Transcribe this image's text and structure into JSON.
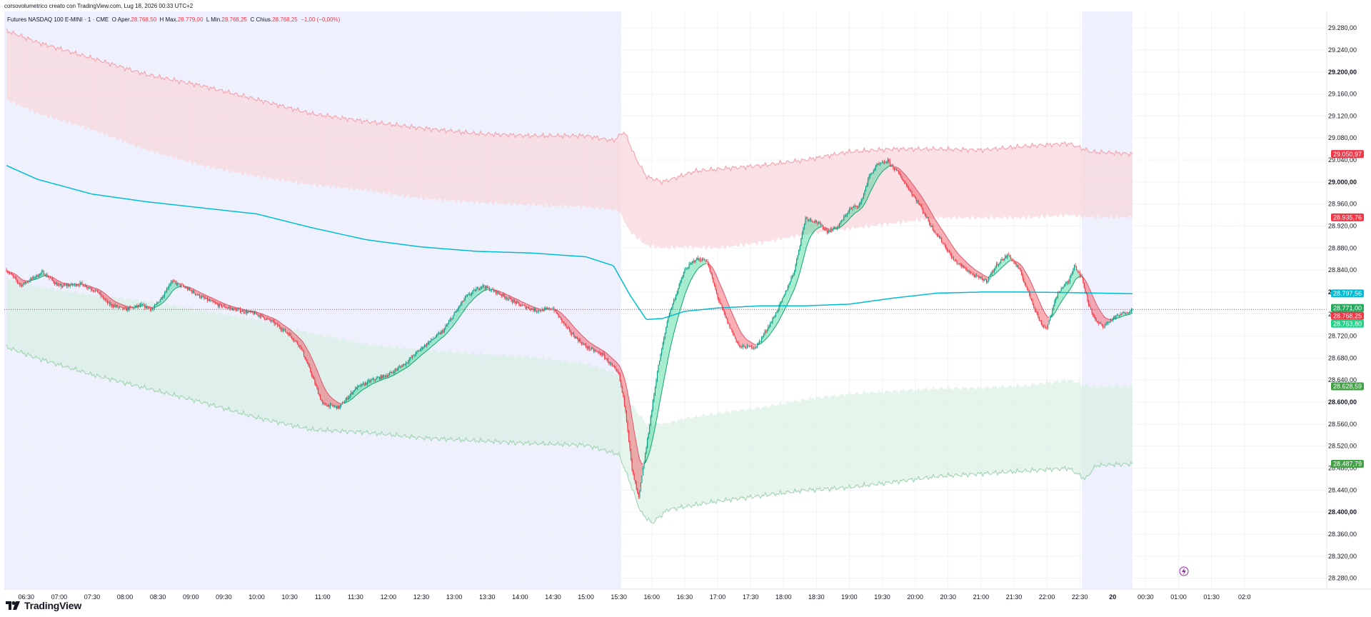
{
  "header": {
    "author_line": "corsovolumetrico creato con TradingView.com, Lug 18, 2026 00:33 UTC+2"
  },
  "legend": {
    "symbol": "Futures NASDAQ 100 E-MINI · 1 · CME",
    "open_label": "O",
    "open_prefix": "Aper.",
    "open_value": "28.768,50",
    "high_label": "H",
    "high_prefix": "Max.",
    "high_value": "28.779,00",
    "low_label": "L",
    "low_prefix": "Min.",
    "low_value": "28.768,25",
    "close_label": "C",
    "close_prefix": "Chius.",
    "close_value": "28.768,25",
    "change": "−1,00 (−0,00%)"
  },
  "footer": {
    "brand": "TradingView"
  },
  "colors": {
    "up": "#22d38a",
    "down": "#f23645",
    "vwap": "#00bcd4",
    "upper_band_fill": "#f8d7dc",
    "lower_band_fill": "#d6efe0",
    "session_shade": "#eef1fd",
    "price_line": "#f23645"
  },
  "chart_data": {
    "type": "candlestick",
    "ylim": [
      28260,
      29310
    ],
    "y_ticks": [
      {
        "label": "28.280,00",
        "value": 28280,
        "bold": false
      },
      {
        "label": "28.320,00",
        "value": 28320,
        "bold": false
      },
      {
        "label": "28.360,00",
        "value": 28360,
        "bold": false
      },
      {
        "label": "28.400,00",
        "value": 28400,
        "bold": true
      },
      {
        "label": "28.440,00",
        "value": 28440,
        "bold": false
      },
      {
        "label": "28.480,00",
        "value": 28480,
        "bold": false
      },
      {
        "label": "28.520,00",
        "value": 28520,
        "bold": false
      },
      {
        "label": "28.560,00",
        "value": 28560,
        "bold": false
      },
      {
        "label": "28.600,00",
        "value": 28600,
        "bold": true
      },
      {
        "label": "28.640,00",
        "value": 28640,
        "bold": false
      },
      {
        "label": "28.680,00",
        "value": 28680,
        "bold": false
      },
      {
        "label": "28.720,00",
        "value": 28720,
        "bold": false
      },
      {
        "label": "28.760,00",
        "value": 28760,
        "bold": false
      },
      {
        "label": "28.800,00",
        "value": 28800,
        "bold": true
      },
      {
        "label": "28.840,00",
        "value": 28840,
        "bold": false
      },
      {
        "label": "28.880,00",
        "value": 28880,
        "bold": false
      },
      {
        "label": "28.920,00",
        "value": 28920,
        "bold": false
      },
      {
        "label": "28.960,00",
        "value": 28960,
        "bold": false
      },
      {
        "label": "29.000,00",
        "value": 29000,
        "bold": true
      },
      {
        "label": "29.040,00",
        "value": 29040,
        "bold": false
      },
      {
        "label": "29.080,00",
        "value": 29080,
        "bold": false
      },
      {
        "label": "29.120,00",
        "value": 29120,
        "bold": false
      },
      {
        "label": "29.160,00",
        "value": 29160,
        "bold": false
      },
      {
        "label": "29.200,00",
        "value": 29200,
        "bold": true
      },
      {
        "label": "29.240,00",
        "value": 29240,
        "bold": false
      },
      {
        "label": "29.280,00",
        "value": 29280,
        "bold": false
      }
    ],
    "x_ticks": [
      "06:30",
      "07:00",
      "07:30",
      "08:00",
      "08:30",
      "09:00",
      "09:30",
      "10:00",
      "10:30",
      "11:00",
      "11:30",
      "12:00",
      "12:30",
      "13:00",
      "13:30",
      "14:00",
      "14:30",
      "15:00",
      "15:30",
      "16:00",
      "16:30",
      "17:00",
      "17:30",
      "18:00",
      "18:30",
      "19:00",
      "19:30",
      "20:00",
      "20:30",
      "21:00",
      "21:30",
      "22:00",
      "22:30",
      "20",
      "00:30",
      "01:00",
      "01:30",
      "02:0"
    ],
    "x_range_minutes": [
      370,
      1575
    ],
    "bold_x_tick": "20",
    "sessions": [
      {
        "from_min": 370,
        "to_min": 932
      },
      {
        "from_min": 1352,
        "to_min": 1398
      }
    ],
    "price_keypoints": [
      [
        372,
        28840
      ],
      [
        385,
        28812
      ],
      [
        405,
        28836
      ],
      [
        420,
        28810
      ],
      [
        440,
        28815
      ],
      [
        455,
        28800
      ],
      [
        465,
        28778
      ],
      [
        480,
        28768
      ],
      [
        495,
        28776
      ],
      [
        505,
        28768
      ],
      [
        515,
        28795
      ],
      [
        522,
        28820
      ],
      [
        535,
        28808
      ],
      [
        550,
        28790
      ],
      [
        565,
        28776
      ],
      [
        580,
        28768
      ],
      [
        600,
        28760
      ],
      [
        615,
        28745
      ],
      [
        630,
        28722
      ],
      [
        640,
        28700
      ],
      [
        650,
        28650
      ],
      [
        660,
        28596
      ],
      [
        675,
        28590
      ],
      [
        690,
        28625
      ],
      [
        705,
        28640
      ],
      [
        720,
        28650
      ],
      [
        735,
        28670
      ],
      [
        750,
        28698
      ],
      [
        770,
        28730
      ],
      [
        790,
        28790
      ],
      [
        805,
        28812
      ],
      [
        820,
        28798
      ],
      [
        840,
        28776
      ],
      [
        855,
        28766
      ],
      [
        870,
        28770
      ],
      [
        885,
        28728
      ],
      [
        900,
        28700
      ],
      [
        915,
        28686
      ],
      [
        930,
        28650
      ],
      [
        936,
        28586
      ],
      [
        942,
        28476
      ],
      [
        948,
        28425
      ],
      [
        955,
        28518
      ],
      [
        965,
        28655
      ],
      [
        975,
        28756
      ],
      [
        990,
        28840
      ],
      [
        1000,
        28860
      ],
      [
        1010,
        28858
      ],
      [
        1020,
        28790
      ],
      [
        1030,
        28740
      ],
      [
        1040,
        28700
      ],
      [
        1055,
        28700
      ],
      [
        1070,
        28750
      ],
      [
        1080,
        28790
      ],
      [
        1090,
        28840
      ],
      [
        1100,
        28935
      ],
      [
        1110,
        28928
      ],
      [
        1120,
        28910
      ],
      [
        1130,
        28920
      ],
      [
        1140,
        28950
      ],
      [
        1150,
        28960
      ],
      [
        1158,
        29010
      ],
      [
        1165,
        29030
      ],
      [
        1175,
        29038
      ],
      [
        1185,
        29015
      ],
      [
        1195,
        28985
      ],
      [
        1205,
        28955
      ],
      [
        1215,
        28918
      ],
      [
        1225,
        28890
      ],
      [
        1235,
        28858
      ],
      [
        1245,
        28843
      ],
      [
        1255,
        28828
      ],
      [
        1265,
        28820
      ],
      [
        1275,
        28852
      ],
      [
        1285,
        28868
      ],
      [
        1295,
        28840
      ],
      [
        1305,
        28790
      ],
      [
        1315,
        28740
      ],
      [
        1320,
        28735
      ],
      [
        1330,
        28800
      ],
      [
        1340,
        28820
      ],
      [
        1345,
        28850
      ],
      [
        1352,
        28825
      ],
      [
        1358,
        28778
      ],
      [
        1365,
        28745
      ],
      [
        1372,
        28738
      ],
      [
        1380,
        28752
      ],
      [
        1390,
        28762
      ],
      [
        1398,
        28768
      ]
    ],
    "vwap_keypoints": [
      [
        372,
        29030
      ],
      [
        400,
        29005
      ],
      [
        450,
        28978
      ],
      [
        500,
        28964
      ],
      [
        550,
        28953
      ],
      [
        600,
        28942
      ],
      [
        650,
        28917
      ],
      [
        700,
        28895
      ],
      [
        750,
        28882
      ],
      [
        800,
        28874
      ],
      [
        850,
        28871
      ],
      [
        900,
        28864
      ],
      [
        925,
        28848
      ],
      [
        940,
        28795
      ],
      [
        955,
        28750
      ],
      [
        970,
        28752
      ],
      [
        990,
        28765
      ],
      [
        1020,
        28771
      ],
      [
        1060,
        28775
      ],
      [
        1100,
        28775
      ],
      [
        1140,
        28778
      ],
      [
        1180,
        28789
      ],
      [
        1220,
        28798
      ],
      [
        1260,
        28800
      ],
      [
        1300,
        28800
      ],
      [
        1340,
        28799
      ],
      [
        1398,
        28797
      ]
    ],
    "upper_outer_keypoints": [
      [
        372,
        29275
      ],
      [
        400,
        29254
      ],
      [
        450,
        29225
      ],
      [
        500,
        29195
      ],
      [
        550,
        29175
      ],
      [
        600,
        29150
      ],
      [
        650,
        29124
      ],
      [
        700,
        29110
      ],
      [
        750,
        29098
      ],
      [
        800,
        29088
      ],
      [
        850,
        29084
      ],
      [
        900,
        29084
      ],
      [
        925,
        29075
      ],
      [
        935,
        29092
      ],
      [
        945,
        29045
      ],
      [
        955,
        29010
      ],
      [
        970,
        29000
      ],
      [
        985,
        29010
      ],
      [
        1000,
        29020
      ],
      [
        1030,
        29025
      ],
      [
        1060,
        29030
      ],
      [
        1100,
        29040
      ],
      [
        1140,
        29055
      ],
      [
        1180,
        29060
      ],
      [
        1220,
        29060
      ],
      [
        1260,
        29058
      ],
      [
        1300,
        29065
      ],
      [
        1340,
        29070
      ],
      [
        1360,
        29055
      ],
      [
        1398,
        29051
      ]
    ],
    "upper_inner_keypoints": [
      [
        372,
        29150
      ],
      [
        400,
        29125
      ],
      [
        450,
        29095
      ],
      [
        500,
        29058
      ],
      [
        550,
        29030
      ],
      [
        600,
        29010
      ],
      [
        650,
        28995
      ],
      [
        700,
        28985
      ],
      [
        750,
        28970
      ],
      [
        800,
        28963
      ],
      [
        850,
        28958
      ],
      [
        900,
        28955
      ],
      [
        930,
        28948
      ],
      [
        940,
        28910
      ],
      [
        955,
        28885
      ],
      [
        970,
        28880
      ],
      [
        990,
        28882
      ],
      [
        1020,
        28880
      ],
      [
        1060,
        28890
      ],
      [
        1100,
        28905
      ],
      [
        1140,
        28915
      ],
      [
        1180,
        28925
      ],
      [
        1220,
        28935
      ],
      [
        1260,
        28935
      ],
      [
        1300,
        28935
      ],
      [
        1340,
        28940
      ],
      [
        1360,
        28936
      ],
      [
        1398,
        28936
      ]
    ],
    "lower_inner_keypoints": [
      [
        372,
        28825
      ],
      [
        400,
        28810
      ],
      [
        450,
        28795
      ],
      [
        500,
        28783
      ],
      [
        550,
        28767
      ],
      [
        600,
        28750
      ],
      [
        650,
        28725
      ],
      [
        700,
        28705
      ],
      [
        750,
        28695
      ],
      [
        800,
        28688
      ],
      [
        850,
        28682
      ],
      [
        900,
        28670
      ],
      [
        930,
        28650
      ],
      [
        940,
        28600
      ],
      [
        955,
        28560
      ],
      [
        970,
        28560
      ],
      [
        990,
        28570
      ],
      [
        1020,
        28580
      ],
      [
        1060,
        28590
      ],
      [
        1100,
        28605
      ],
      [
        1140,
        28615
      ],
      [
        1180,
        28620
      ],
      [
        1220,
        28625
      ],
      [
        1260,
        28626
      ],
      [
        1300,
        28630
      ],
      [
        1340,
        28640
      ],
      [
        1360,
        28628
      ],
      [
        1398,
        28629
      ]
    ],
    "lower_outer_keypoints": [
      [
        372,
        28700
      ],
      [
        400,
        28680
      ],
      [
        450,
        28650
      ],
      [
        500,
        28625
      ],
      [
        550,
        28600
      ],
      [
        600,
        28572
      ],
      [
        650,
        28550
      ],
      [
        700,
        28545
      ],
      [
        750,
        28535
      ],
      [
        800,
        28530
      ],
      [
        850,
        28525
      ],
      [
        900,
        28522
      ],
      [
        930,
        28505
      ],
      [
        940,
        28455
      ],
      [
        950,
        28400
      ],
      [
        960,
        28380
      ],
      [
        975,
        28405
      ],
      [
        990,
        28410
      ],
      [
        1020,
        28420
      ],
      [
        1060,
        28430
      ],
      [
        1100,
        28440
      ],
      [
        1140,
        28445
      ],
      [
        1180,
        28455
      ],
      [
        1220,
        28465
      ],
      [
        1260,
        28470
      ],
      [
        1300,
        28475
      ],
      [
        1340,
        28480
      ],
      [
        1355,
        28460
      ],
      [
        1365,
        28485
      ],
      [
        1398,
        28488
      ]
    ],
    "price_badges": [
      {
        "label": "29.050,97",
        "value": 29050.97,
        "color": "#f23645"
      },
      {
        "label": "28.935,76",
        "value": 28935.76,
        "color": "#f23645"
      },
      {
        "label": "28.797,56",
        "value": 28797.56,
        "color": "#00bcd4"
      },
      {
        "label": "28.771,00",
        "value": 28771.0,
        "color": "#22ab5a"
      },
      {
        "label": "28.768,25",
        "value": 28768.25,
        "color": "#f23645"
      },
      {
        "label": "28.763,80",
        "value": 28763.8,
        "color": "#22d38a"
      },
      {
        "label": "28.628,59",
        "value": 28628.59,
        "color": "#43a047"
      },
      {
        "label": "28.487,79",
        "value": 28487.79,
        "color": "#43a047"
      }
    ]
  }
}
